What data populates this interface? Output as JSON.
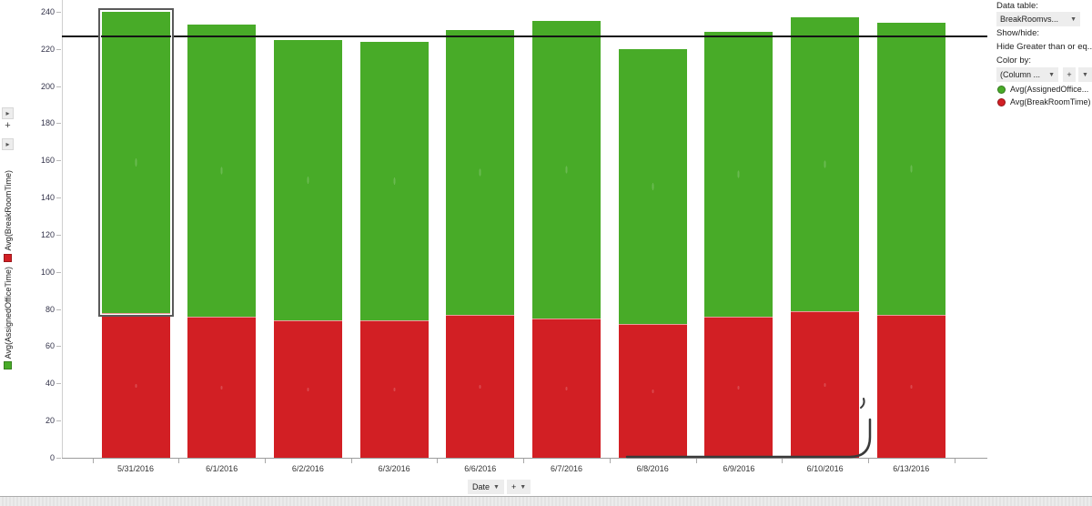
{
  "icons": {
    "dropdown_arrow": "▾",
    "dropdown_arrow_rotated": "▸",
    "add": "+"
  },
  "left_axis": {
    "labels": [
      {
        "text": "Avg(BreakRoomTime)",
        "swatch_color": "#d21f24"
      },
      {
        "text": "Avg(AssignedOfficeTime)",
        "swatch_color": "#48ab28"
      }
    ]
  },
  "y_axis": {
    "ticks": [
      0,
      20,
      40,
      60,
      80,
      100,
      120,
      140,
      160,
      180,
      200,
      220,
      240
    ]
  },
  "x_axis_selector": {
    "label": "Date",
    "add": "+"
  },
  "chart_data": {
    "type": "bar",
    "stacked": true,
    "categories": [
      "5/31/2016",
      "6/1/2016",
      "6/2/2016",
      "6/3/2016",
      "6/6/2016",
      "6/7/2016",
      "6/8/2016",
      "6/9/2016",
      "6/10/2016",
      "6/13/2016"
    ],
    "series": [
      {
        "name": "Avg(BreakRoomTime)",
        "color": "#d21f24",
        "values": [
          78,
          76,
          74,
          74,
          77,
          75,
          72,
          76,
          79,
          77
        ]
      },
      {
        "name": "Avg(AssignedOfficeTime)",
        "color": "#48ab28",
        "values": [
          162,
          157,
          151,
          150,
          153,
          160,
          148,
          153,
          158,
          157
        ]
      }
    ],
    "totals": [
      240,
      233,
      225,
      224,
      230,
      235,
      220,
      229,
      237,
      234
    ],
    "title": "",
    "xlabel": "Date",
    "ylabel": "Avg(AssignedOfficeTime), Avg(BreakRoomTime)",
    "ylim": [
      0,
      240
    ],
    "grid": false,
    "legend_position": "right",
    "reference_line": {
      "value": 227,
      "color": "#141414"
    },
    "selection": {
      "category_index": 0,
      "segment": "Avg(AssignedOfficeTime)"
    }
  },
  "panel": {
    "data_table_label": "Data table:",
    "data_table_value": "BreakRoomvs...",
    "show_hide_label": "Show/hide:",
    "show_hide_value": "Hide Greater than or eq...",
    "color_by_label": "Color by:",
    "color_by_value": "(Column ...",
    "color_by_add": "+",
    "legend": [
      {
        "label": "Avg(AssignedOffice...",
        "color": "#48ab28"
      },
      {
        "label": "Avg(BreakRoomTime)",
        "color": "#d21f24"
      }
    ]
  }
}
